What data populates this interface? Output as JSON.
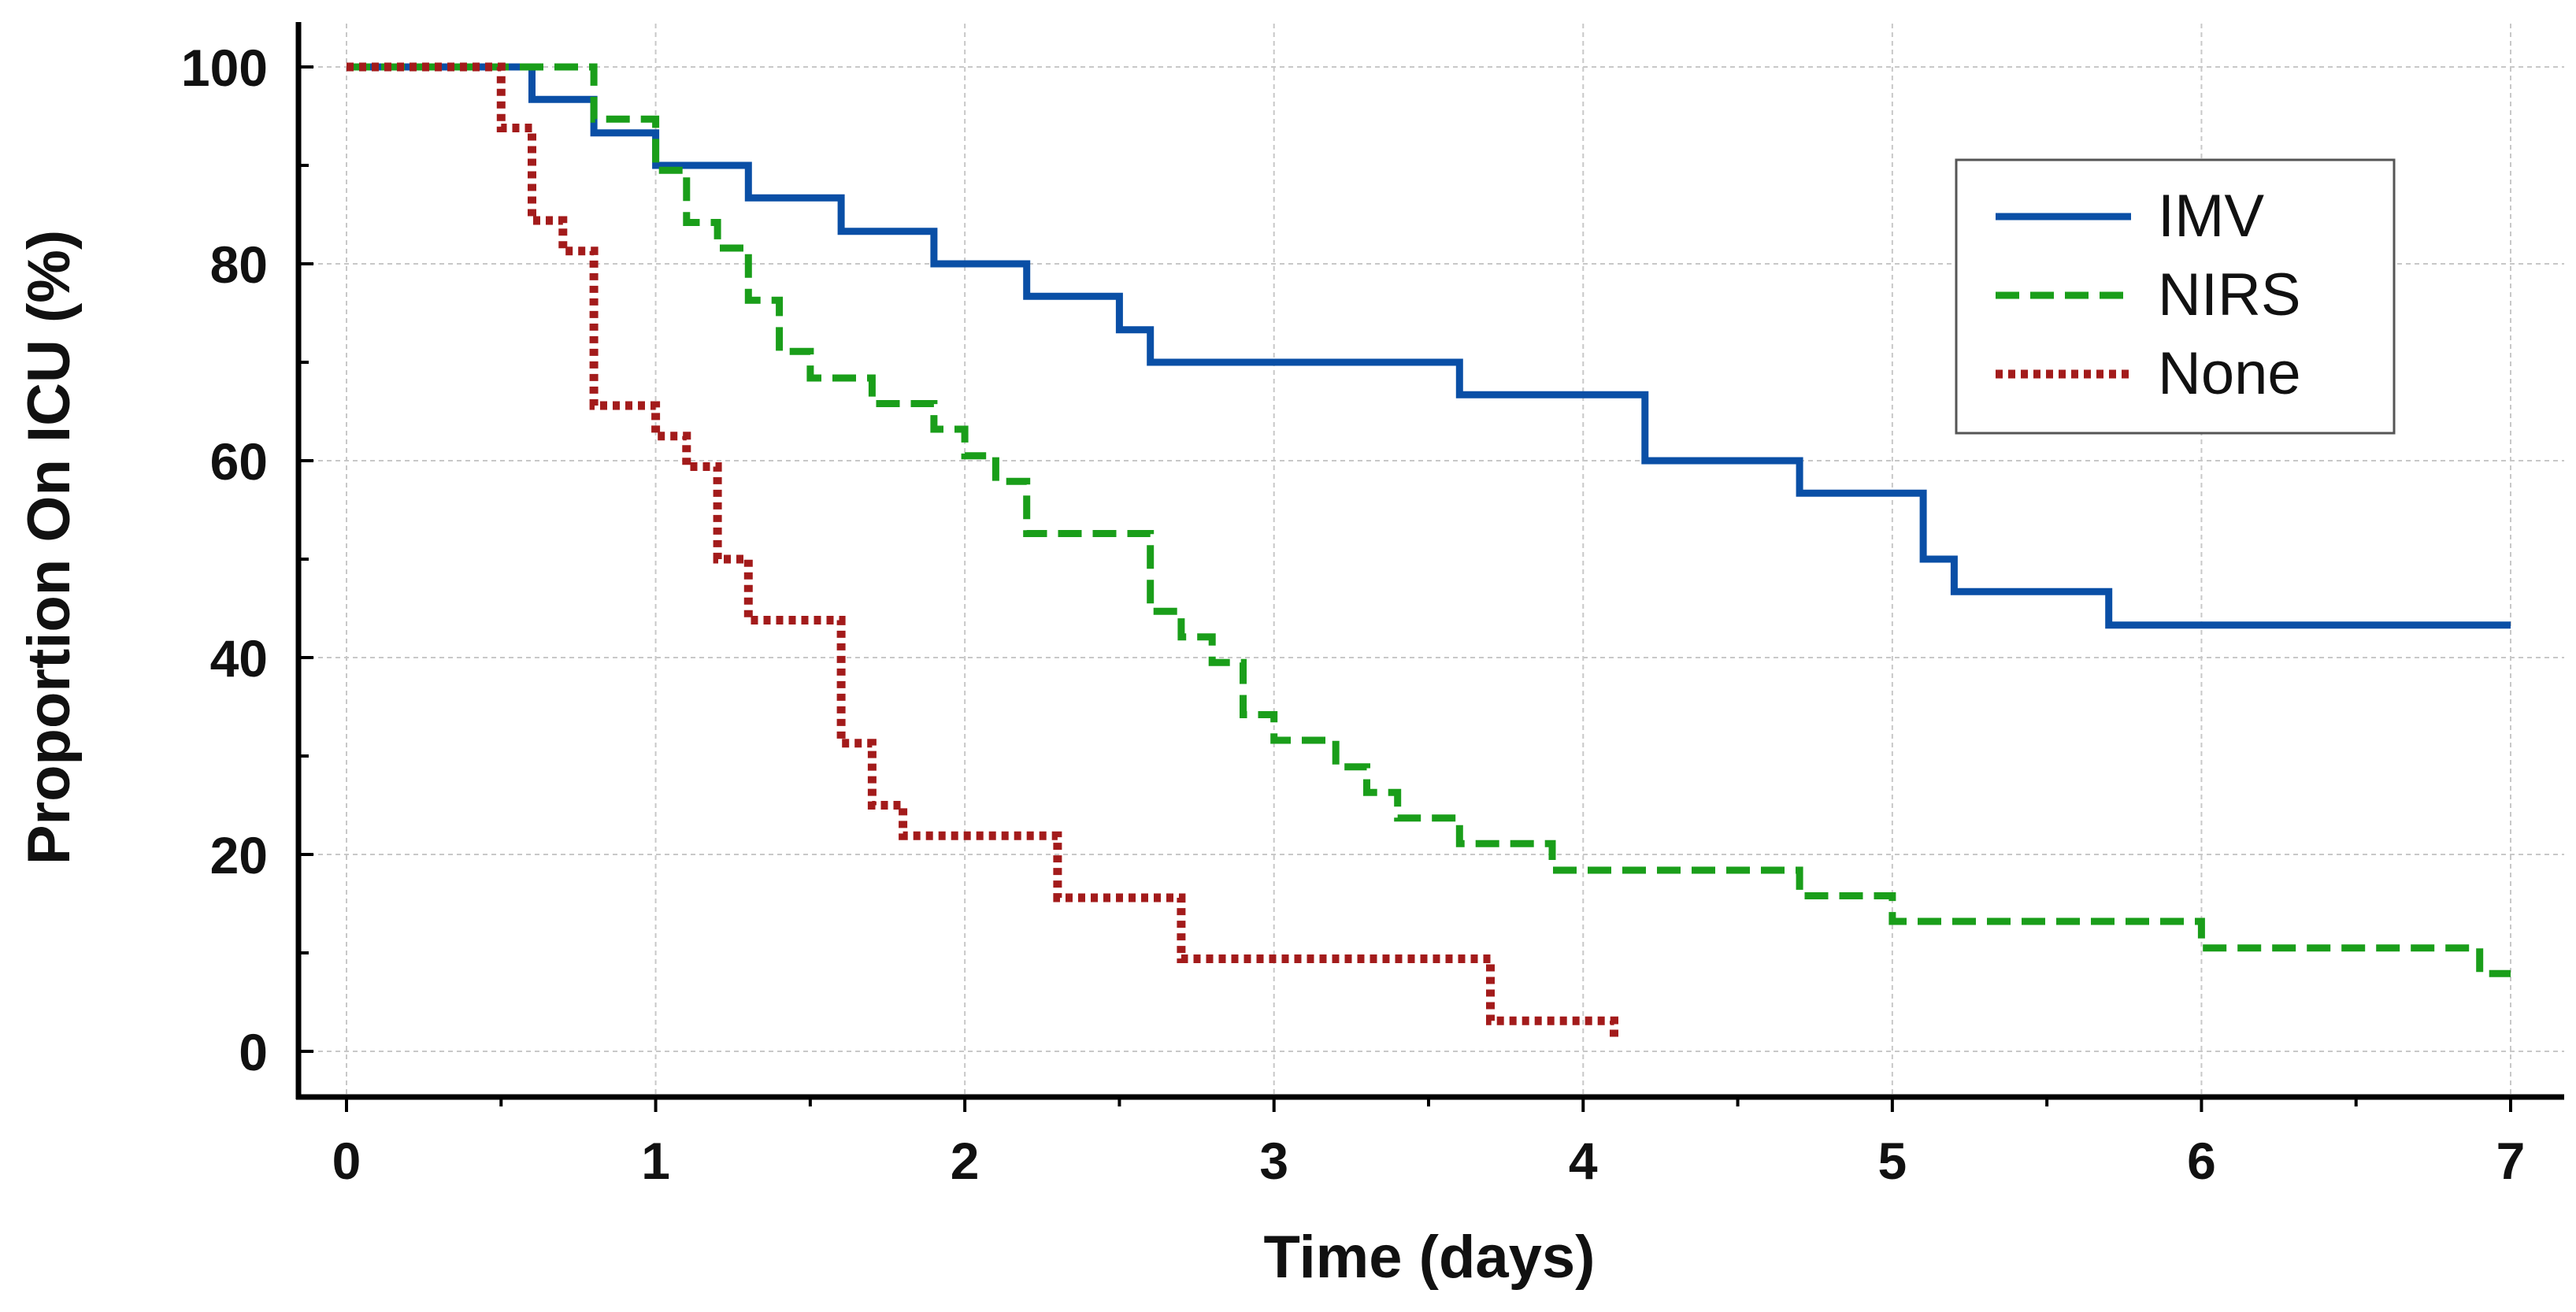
{
  "chart_data": {
    "type": "line",
    "subtype": "kaplan-meier-step",
    "title": "",
    "xlabel": "Time (days)",
    "ylabel": "Proportion On ICU (%)",
    "xlim": [
      0,
      7
    ],
    "ylim": [
      0,
      100
    ],
    "x_ticks": [
      0,
      1,
      2,
      3,
      4,
      5,
      6,
      7
    ],
    "y_ticks": [
      0,
      20,
      40,
      60,
      80,
      100
    ],
    "grid": true,
    "legend_position": "top-right",
    "series": [
      {
        "name": "IMV",
        "color": "#0a4fa6",
        "style": "solid",
        "points": [
          [
            0,
            100
          ],
          [
            0.6,
            96.7
          ],
          [
            0.8,
            93.3
          ],
          [
            1.0,
            90.0
          ],
          [
            1.3,
            86.7
          ],
          [
            1.6,
            83.3
          ],
          [
            1.9,
            80.0
          ],
          [
            2.2,
            76.7
          ],
          [
            2.5,
            73.3
          ],
          [
            2.6,
            70.0
          ],
          [
            3.6,
            66.7
          ],
          [
            4.2,
            60.0
          ],
          [
            4.7,
            56.7
          ],
          [
            5.1,
            50.0
          ],
          [
            5.2,
            46.7
          ],
          [
            5.7,
            43.3
          ],
          [
            7.0,
            43.3
          ]
        ]
      },
      {
        "name": "NIRS",
        "color": "#1a9e1a",
        "style": "dashed",
        "points": [
          [
            0,
            100
          ],
          [
            0.8,
            94.7
          ],
          [
            1.0,
            89.5
          ],
          [
            1.1,
            84.2
          ],
          [
            1.2,
            81.6
          ],
          [
            1.3,
            76.3
          ],
          [
            1.4,
            71.1
          ],
          [
            1.5,
            68.4
          ],
          [
            1.7,
            65.8
          ],
          [
            1.9,
            63.2
          ],
          [
            2.0,
            60.5
          ],
          [
            2.1,
            57.9
          ],
          [
            2.2,
            52.6
          ],
          [
            2.6,
            44.7
          ],
          [
            2.7,
            42.1
          ],
          [
            2.8,
            39.5
          ],
          [
            2.9,
            34.2
          ],
          [
            3.0,
            31.6
          ],
          [
            3.2,
            28.9
          ],
          [
            3.3,
            26.3
          ],
          [
            3.4,
            23.7
          ],
          [
            3.6,
            21.1
          ],
          [
            3.9,
            18.4
          ],
          [
            4.7,
            15.8
          ],
          [
            5.0,
            13.2
          ],
          [
            6.0,
            10.5
          ],
          [
            6.9,
            7.9
          ],
          [
            7.0,
            7.9
          ]
        ]
      },
      {
        "name": "None",
        "color": "#a31b1b",
        "style": "dotted",
        "points": [
          [
            0,
            100
          ],
          [
            0.5,
            93.8
          ],
          [
            0.6,
            84.4
          ],
          [
            0.7,
            81.3
          ],
          [
            0.8,
            65.6
          ],
          [
            1.0,
            62.5
          ],
          [
            1.1,
            59.4
          ],
          [
            1.2,
            50.0
          ],
          [
            1.3,
            43.8
          ],
          [
            1.6,
            31.3
          ],
          [
            1.7,
            25.0
          ],
          [
            1.8,
            21.9
          ],
          [
            2.3,
            15.6
          ],
          [
            2.7,
            9.4
          ],
          [
            3.7,
            3.1
          ],
          [
            4.1,
            3.1
          ],
          [
            4.1,
            1.0
          ]
        ]
      }
    ]
  }
}
